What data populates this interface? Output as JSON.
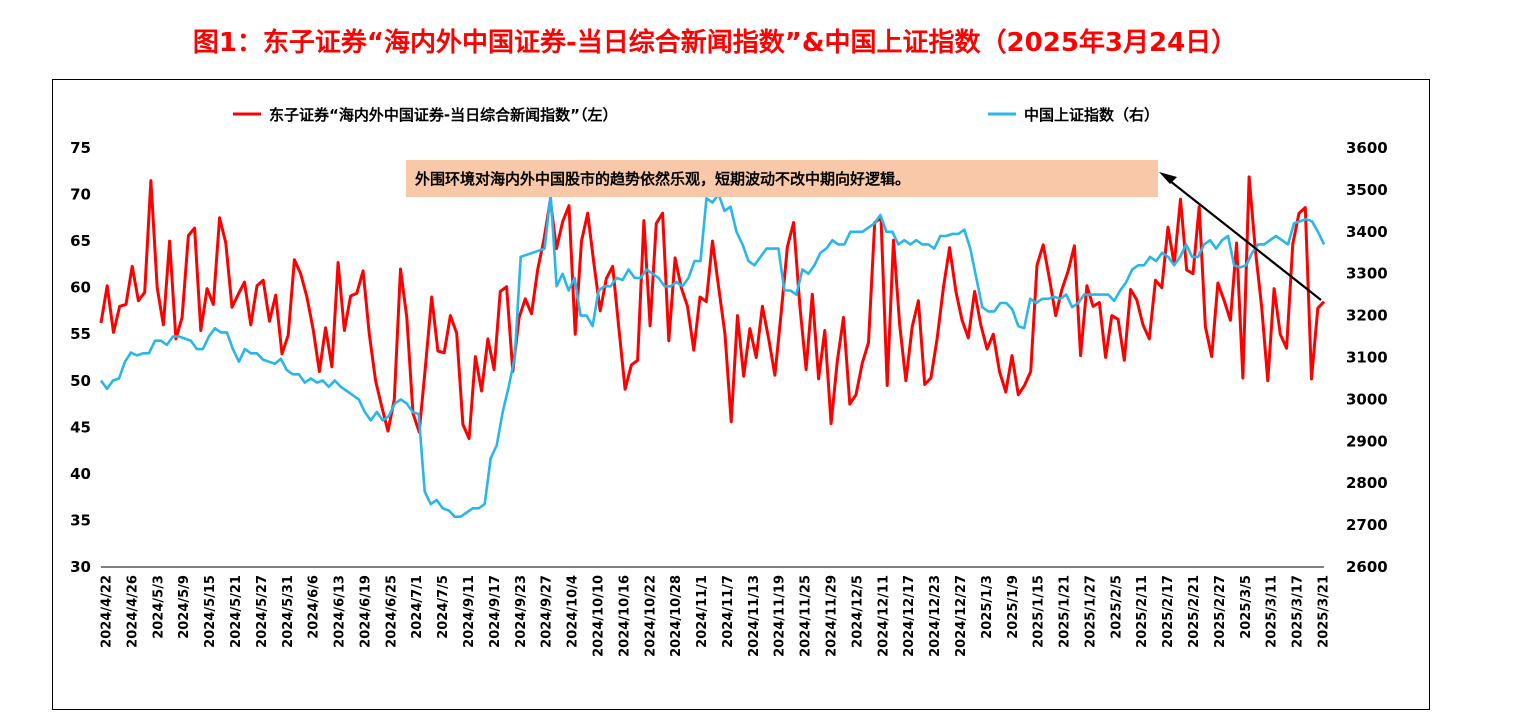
{
  "figure_title": "图1：东子证券“海内外中国证券-当日综合新闻指数”&中国上证指数（2025年3月24日）",
  "colors": {
    "title": "#ff0000",
    "series_left": "#ff0000",
    "series_right": "#29b6e8",
    "annotation_bg": "#f8c8a8"
  },
  "chart_data": {
    "type": "line",
    "legend": {
      "placement": "top"
    },
    "annotation": "外围环境对海内外中国股市的趋势依然乐观，短期波动不改中期向好逻辑。",
    "x_tick_labels": [
      "2024/4/22",
      "2024/4/26",
      "2024/5/3",
      "2024/5/9",
      "2024/5/15",
      "2024/5/21",
      "2024/5/27",
      "2024/5/31",
      "2024/6/6",
      "2024/6/13",
      "2024/6/19",
      "2024/6/25",
      "2024/7/1",
      "2024/7/5",
      "2024/9/11",
      "2024/9/17",
      "2024/9/23",
      "2024/9/27",
      "2024/10/4",
      "2024/10/10",
      "2024/10/16",
      "2024/10/22",
      "2024/10/28",
      "2024/11/1",
      "2024/11/7",
      "2024/11/13",
      "2024/11/19",
      "2024/11/25",
      "2024/11/29",
      "2024/12/5",
      "2024/12/11",
      "2024/12/17",
      "2024/12/23",
      "2024/12/27",
      "2025/1/3",
      "2025/1/9",
      "2025/1/15",
      "2025/1/21",
      "2025/1/27",
      "2025/2/5",
      "2025/2/11",
      "2025/2/17",
      "2025/2/21",
      "2025/2/27",
      "2025/3/5",
      "2025/3/11",
      "2025/3/17",
      "2025/3/21"
    ],
    "y_left": {
      "ylim": [
        30,
        75
      ],
      "ticks": [
        30,
        35,
        40,
        45,
        50,
        55,
        60,
        65,
        70,
        75
      ]
    },
    "y_right": {
      "ylim": [
        2600,
        3600
      ],
      "ticks": [
        2600,
        2700,
        2800,
        2900,
        3000,
        3100,
        3200,
        3300,
        3400,
        3500,
        3600
      ]
    },
    "series": [
      {
        "name": "东子证券“海内外中国证券-当日综合新闻指数”（左）",
        "axis": "left",
        "values": [
          56.2,
          60.2,
          55.2,
          58.0,
          58.2,
          62.3,
          58.6,
          59.5,
          71.5,
          60.0,
          56.0,
          65.0,
          54.5,
          56.8,
          65.6,
          66.4,
          55.4,
          59.9,
          58.2,
          67.5,
          64.8,
          57.9,
          59.3,
          60.6,
          56.0,
          60.2,
          60.8,
          56.4,
          59.2,
          52.9,
          54.9,
          63.0,
          61.5,
          59.0,
          55.5,
          51.0,
          55.7,
          51.5,
          62.7,
          55.4,
          59.1,
          59.4,
          61.8,
          55.0,
          50.0,
          47.2,
          44.6,
          48.0,
          62.0,
          56.8,
          46.5,
          44.5,
          51.6,
          59.0,
          53.2,
          53.0,
          57.0,
          55.1,
          45.3,
          43.8,
          52.6,
          48.9,
          54.5,
          51.2,
          59.6,
          60.1,
          51.0,
          56.8,
          58.8,
          57.2,
          62.0,
          65.2,
          69.4,
          64.2,
          67.1,
          68.8,
          55.0,
          65.0,
          68.0,
          62.6,
          57.5,
          61.0,
          62.3,
          55.6,
          49.1,
          51.7,
          52.2,
          67.2,
          55.9,
          66.9,
          68.0,
          54.3,
          63.2,
          60.0,
          58.0,
          53.3,
          59.0,
          58.5,
          65.0,
          60.0,
          55.0,
          45.6,
          57.0,
          50.5,
          55.6,
          52.5,
          58.0,
          54.5,
          50.6,
          57.2,
          64.4,
          67.0,
          58.0,
          51.2,
          59.3,
          50.2,
          55.4,
          45.4,
          52.1,
          56.8,
          47.5,
          48.5,
          51.9,
          54.1,
          67.0,
          67.5,
          49.5,
          65.1,
          56.0,
          50.0,
          55.8,
          58.6,
          49.6,
          50.3,
          54.5,
          60.0,
          64.3,
          59.6,
          56.5,
          54.6,
          59.6,
          56.0,
          53.4,
          55.0,
          51.0,
          48.8,
          52.7,
          48.5,
          49.5,
          51.0,
          62.4,
          64.6,
          61.0,
          57.0,
          59.8,
          61.8,
          64.5,
          52.7,
          60.2,
          58.0,
          58.4,
          52.5,
          57.0,
          56.6,
          52.2,
          59.8,
          58.7,
          56.0,
          54.5,
          60.8,
          60.0,
          66.5,
          62.5,
          69.5,
          61.9,
          61.5,
          68.7,
          55.8,
          52.6,
          60.5,
          58.6,
          56.5,
          64.8,
          50.3,
          71.9,
          64.0,
          58.0,
          50.0,
          59.9,
          55.0,
          53.5,
          64.7,
          68.0,
          68.6,
          50.2,
          57.8,
          58.5
        ]
      },
      {
        "name": "中国上证指数（右）",
        "axis": "right",
        "values": [
          3045,
          3025,
          3045,
          3050,
          3090,
          3112,
          3105,
          3110,
          3110,
          3140,
          3140,
          3130,
          3150,
          3150,
          3145,
          3140,
          3120,
          3120,
          3150,
          3170,
          3160,
          3160,
          3120,
          3090,
          3120,
          3110,
          3110,
          3095,
          3090,
          3085,
          3097,
          3070,
          3060,
          3060,
          3040,
          3050,
          3040,
          3045,
          3030,
          3045,
          3030,
          3020,
          3010,
          3000,
          2970,
          2950,
          2970,
          2950,
          2960,
          2990,
          3000,
          2990,
          2970,
          2965,
          2780,
          2750,
          2760,
          2740,
          2735,
          2720,
          2720,
          2730,
          2740,
          2740,
          2750,
          2860,
          2890,
          2970,
          3030,
          3100,
          3340,
          3345,
          3350,
          3355,
          3360,
          3490,
          3270,
          3300,
          3260,
          3290,
          3200,
          3200,
          3175,
          3260,
          3270,
          3270,
          3290,
          3285,
          3310,
          3290,
          3290,
          3310,
          3300,
          3290,
          3270,
          3270,
          3280,
          3270,
          3290,
          3330,
          3330,
          3480,
          3470,
          3490,
          3450,
          3460,
          3400,
          3370,
          3330,
          3320,
          3340,
          3360,
          3360,
          3360,
          3260,
          3260,
          3250,
          3310,
          3300,
          3320,
          3350,
          3360,
          3380,
          3370,
          3370,
          3400,
          3400,
          3400,
          3410,
          3420,
          3440,
          3400,
          3400,
          3370,
          3380,
          3370,
          3380,
          3370,
          3370,
          3360,
          3390,
          3390,
          3395,
          3395,
          3405,
          3360,
          3290,
          3220,
          3210,
          3210,
          3230,
          3230,
          3215,
          3175,
          3170,
          3240,
          3230,
          3240,
          3240,
          3245,
          3240,
          3250,
          3220,
          3230,
          3250,
          3250,
          3250,
          3250,
          3250,
          3235,
          3260,
          3280,
          3310,
          3320,
          3320,
          3340,
          3330,
          3350,
          3340,
          3320,
          3340,
          3370,
          3340,
          3340,
          3370,
          3380,
          3360,
          3380,
          3390,
          3320,
          3315,
          3320,
          3350,
          3370,
          3370,
          3380,
          3390,
          3380,
          3370,
          3420,
          3425,
          3430,
          3425,
          3400,
          3370
        ]
      }
    ]
  }
}
